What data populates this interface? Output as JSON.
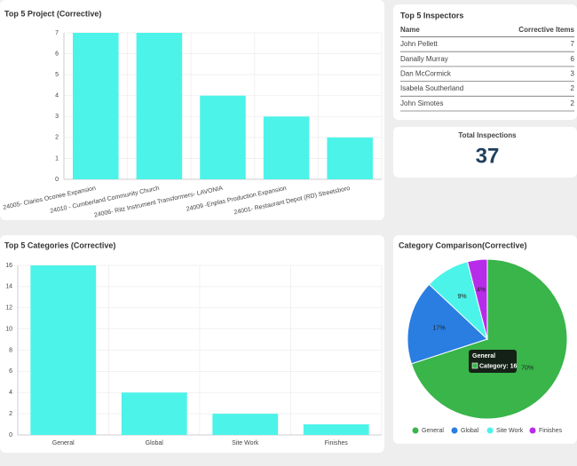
{
  "chart_data": [
    {
      "type": "bar",
      "title": "Top 5 Project (Corrective)",
      "categories": [
        "24005- Clarios Oconee Expansion",
        "24010 - Cumberland Community Church",
        "24006- Ritz Instrument Transformers- LAVONIA",
        "24009 -Enplas Production Expansion",
        "24001- Restaurant Depot (RD) Streetsboro"
      ],
      "values": [
        7,
        7,
        4,
        3,
        2
      ],
      "color": "#4cf3e9",
      "ylim": [
        0,
        7
      ],
      "yticks": [
        0,
        1,
        2,
        3,
        4,
        5,
        6,
        7
      ],
      "grid": true
    },
    {
      "type": "bar",
      "title": "Top 5 Categories (Corrective)",
      "categories": [
        "General",
        "Global",
        "Site Work",
        "Finishes"
      ],
      "values": [
        16,
        4,
        2,
        1
      ],
      "color": "#4cf3e9",
      "ylim": [
        0,
        16
      ],
      "yticks": [
        0,
        2,
        4,
        6,
        8,
        10,
        12,
        14,
        16
      ],
      "grid": true
    },
    {
      "type": "pie",
      "title": "Category Comparison(Corrective)",
      "categories": [
        "General",
        "Global",
        "Site Work",
        "Finishes"
      ],
      "values": [
        70,
        17,
        9,
        4
      ],
      "value_labels": [
        "70%",
        "17%",
        "9%",
        "4%"
      ],
      "colors": [
        "#39b54a",
        "#2a7de1",
        "#4cf3e9",
        "#b62ce8"
      ],
      "legend": "bottom",
      "tooltip": {
        "title": "General",
        "label": "Category: 16"
      }
    }
  ],
  "inspectors": {
    "title": "Top 5 Inspectors",
    "columns": [
      "Name",
      "Corrective Items"
    ],
    "rows": [
      [
        "John Pellett",
        "7"
      ],
      [
        "Danally Murray",
        "6"
      ],
      [
        "Dan McCormick",
        "3"
      ],
      [
        "Isabela Southerland",
        "2"
      ],
      [
        "John Simotes",
        "2"
      ]
    ]
  },
  "total_inspections": {
    "label": "Total Inspections",
    "value": "37"
  }
}
